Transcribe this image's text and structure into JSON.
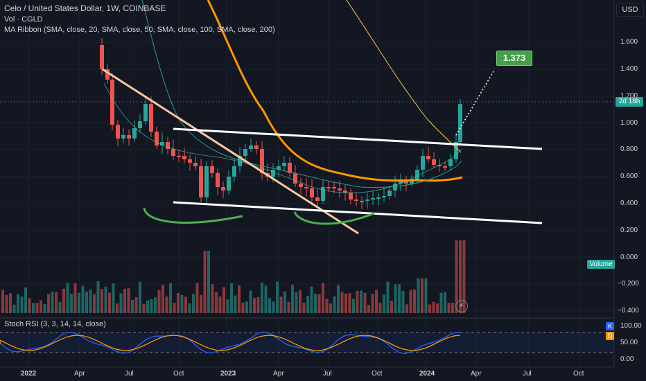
{
  "header": {
    "symbol_line": "Celo / United States Dollar, 1W, COINBASE",
    "vol_line": "Vol · CGLD",
    "ribbon_line": "MA Ribbon (SMA, close, 20, SMA, close, 50, SMA, close, 100, SMA, close, 200)",
    "currency_button": "USD",
    "rsi_line": "Stoch RSI (3, 3, 14, 14, close)"
  },
  "price_axis": {
    "ticks": [
      "1.600",
      "1.400",
      "1.200",
      "1.000",
      "0.800",
      "0.600",
      "0.400",
      "0.200",
      "0.000",
      "−0.200",
      "−0.400"
    ],
    "countdown_badge": "2d 18h",
    "volume_badge": "Volume"
  },
  "rsi_axis": {
    "ticks": [
      "100.00",
      "50.00",
      "0.00"
    ],
    "k_badge": "K",
    "d_badge": "D"
  },
  "time_axis": {
    "labels": [
      "2022",
      "Apr",
      "Jul",
      "Oct",
      "2023",
      "Apr",
      "Jul",
      "Oct",
      "2024",
      "Apr",
      "Jul",
      "Oct"
    ]
  },
  "annotation": {
    "target_label": "1.373"
  },
  "colors": {
    "background": "#131722",
    "up_candle": "#26a69a",
    "down_candle": "#ef5350",
    "ma_orange": "#ff9800",
    "trendline_tan": "#f7c99b",
    "drawing_green": "#4caf50",
    "label_green": "#43a047"
  }
}
